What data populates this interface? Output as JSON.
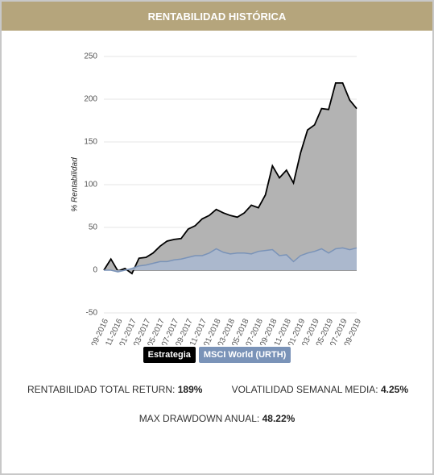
{
  "header": {
    "title": "RENTABILIDAD HISTÓRICA"
  },
  "chart_data": {
    "type": "area",
    "ylabel": "% Rentabilidad",
    "categories": [
      "09-2016",
      null,
      "11-2016",
      null,
      "01-2017",
      null,
      "03-2017",
      null,
      "05-2017",
      null,
      "07-2017",
      null,
      "09-2017",
      null,
      "11-2017",
      null,
      "01-2018",
      null,
      "03-2018",
      null,
      "05-2018",
      null,
      "07-2018",
      null,
      "09-2018",
      null,
      "11-2018",
      null,
      "01-2019",
      null,
      "03-2019",
      null,
      "05-2019",
      null,
      "07-2019",
      null,
      "09-2019"
    ],
    "series": [
      {
        "name": "Estrategia",
        "color": "#000000",
        "fill": "#b3b3b3",
        "values": [
          0,
          13,
          -1,
          2,
          -4,
          14,
          15,
          20,
          28,
          34,
          36,
          37,
          48,
          52,
          60,
          64,
          71,
          67,
          64,
          62,
          67,
          76,
          73,
          88,
          122,
          108,
          117,
          102,
          137,
          164,
          170,
          189,
          188,
          219,
          219,
          199,
          189
        ]
      },
      {
        "name": "MSCI World (URTH)",
        "color": "#7a93b8",
        "fill": "#a9b8d1",
        "values": [
          0,
          0,
          -2,
          0,
          2,
          5,
          6,
          8,
          10,
          10,
          12,
          13,
          15,
          17,
          17,
          20,
          25,
          21,
          19,
          20,
          20,
          19,
          22,
          23,
          24,
          17,
          18,
          10,
          17,
          20,
          22,
          25,
          20,
          25,
          26,
          24,
          26
        ]
      }
    ],
    "ylim": [
      -50,
      250
    ],
    "yticks": [
      -50,
      0,
      50,
      100,
      150,
      200,
      250
    ],
    "grid": true
  },
  "stats": [
    {
      "label": "RENTABILIDAD TOTAL RETURN:",
      "value": "189%"
    },
    {
      "label": "VOLATILIDAD SEMANAL MEDIA:",
      "value": "4.25%"
    },
    {
      "label": "MAX DRAWDOWN ANUAL:",
      "value": "48.22%"
    }
  ]
}
